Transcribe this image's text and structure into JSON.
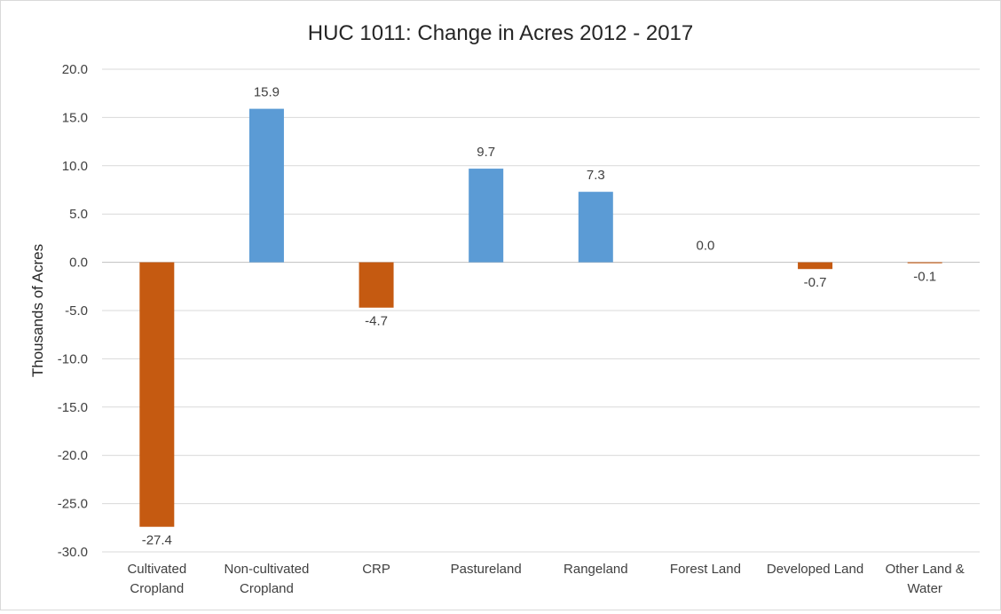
{
  "chart_data": {
    "type": "bar",
    "title": "HUC 1011: Change in Acres 2012 - 2017",
    "ylabel": "Thousands of Acres",
    "xlabel": "",
    "ylim": [
      -30,
      20
    ],
    "ytick_step": 5,
    "ytick_labels": [
      "20.0",
      "15.0",
      "10.0",
      "5.0",
      "0.0",
      "-5.0",
      "-10.0",
      "-15.0",
      "-20.0",
      "-25.0",
      "-30.0"
    ],
    "grid": true,
    "legend": "none",
    "categories": [
      [
        "Cultivated",
        "Cropland"
      ],
      [
        "Non-cultivated",
        "Cropland"
      ],
      [
        "CRP"
      ],
      [
        "Pastureland"
      ],
      [
        "Rangeland"
      ],
      [
        "Forest Land"
      ],
      [
        "Developed Land"
      ],
      [
        "Other Land &",
        "Water"
      ]
    ],
    "values": [
      -27.4,
      15.9,
      -4.7,
      9.7,
      7.3,
      0.0,
      -0.7,
      -0.1
    ],
    "data_labels": [
      "-27.4",
      "15.9",
      "-4.7",
      "9.7",
      "7.3",
      "0.0",
      "-0.7",
      "-0.1"
    ],
    "colors": {
      "positive": "#5b9bd5",
      "negative": "#c55a11",
      "grid": "#d9d9d9",
      "axis": "#bfbfbf"
    }
  }
}
